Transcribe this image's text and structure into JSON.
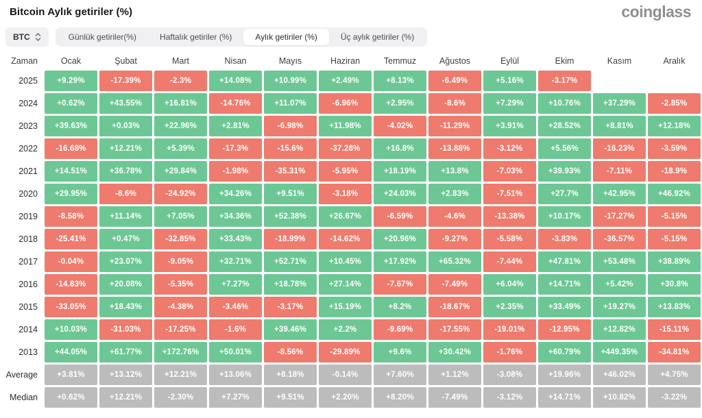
{
  "header": {
    "title": "Bitcoin Aylık getiriler (%)",
    "logo": "coinglass"
  },
  "controls": {
    "symbol": "BTC",
    "tabs": [
      {
        "label": "Günlük getiriler(%)",
        "active": false
      },
      {
        "label": "Haftalık getiriler (%)",
        "active": false
      },
      {
        "label": "Aylık getiriler (%)",
        "active": true
      },
      {
        "label": "Üç aylık getiriler (%)",
        "active": false
      }
    ]
  },
  "theme": {
    "positive": "#6cc794",
    "negative": "#ee7b6d",
    "neutral": "#bcbcbc",
    "tab_bar_bg": "#f0f0f2",
    "cell_text": "#ffffff"
  },
  "chart_data": {
    "type": "heatmap",
    "title": "Bitcoin Aylık getiriler (%)",
    "columns": [
      "Zaman",
      "Ocak",
      "Şubat",
      "Mart",
      "Nisan",
      "Mayıs",
      "Haziran",
      "Temmuz",
      "Ağustos",
      "Eylül",
      "Ekim",
      "Kasım",
      "Aralık"
    ],
    "rows": [
      {
        "label": "2025",
        "type": "year",
        "values": [
          "+9.29%",
          "-17.39%",
          "-2.3%",
          "+14.08%",
          "+10.99%",
          "+2.49%",
          "+8.13%",
          "-6.49%",
          "+5.16%",
          "-3.17%",
          null,
          null
        ]
      },
      {
        "label": "2024",
        "type": "year",
        "values": [
          "+0.62%",
          "+43.55%",
          "+16.81%",
          "-14.76%",
          "+11.07%",
          "-6.96%",
          "+2.95%",
          "-8.6%",
          "+7.29%",
          "+10.76%",
          "+37.29%",
          "-2.85%"
        ]
      },
      {
        "label": "2023",
        "type": "year",
        "values": [
          "+39.63%",
          "+0.03%",
          "+22.96%",
          "+2.81%",
          "-6.98%",
          "+11.98%",
          "-4.02%",
          "-11.29%",
          "+3.91%",
          "+28.52%",
          "+8.81%",
          "+12.18%"
        ]
      },
      {
        "label": "2022",
        "type": "year",
        "values": [
          "-16.68%",
          "+12.21%",
          "+5.39%",
          "-17.3%",
          "-15.6%",
          "-37.28%",
          "+16.8%",
          "-13.88%",
          "-3.12%",
          "+5.56%",
          "-16.23%",
          "-3.59%"
        ]
      },
      {
        "label": "2021",
        "type": "year",
        "values": [
          "+14.51%",
          "+36.78%",
          "+29.84%",
          "-1.98%",
          "-35.31%",
          "-5.95%",
          "+18.19%",
          "+13.8%",
          "-7.03%",
          "+39.93%",
          "-7.11%",
          "-18.9%"
        ]
      },
      {
        "label": "2020",
        "type": "year",
        "values": [
          "+29.95%",
          "-8.6%",
          "-24.92%",
          "+34.26%",
          "+9.51%",
          "-3.18%",
          "+24.03%",
          "+2.83%",
          "-7.51%",
          "+27.7%",
          "+42.95%",
          "+46.92%"
        ]
      },
      {
        "label": "2019",
        "type": "year",
        "values": [
          "-8.58%",
          "+11.14%",
          "+7.05%",
          "+34.36%",
          "+52.38%",
          "+26.67%",
          "-6.59%",
          "-4.6%",
          "-13.38%",
          "+10.17%",
          "-17.27%",
          "-5.15%"
        ]
      },
      {
        "label": "2018",
        "type": "year",
        "values": [
          "-25.41%",
          "+0.47%",
          "-32.85%",
          "+33.43%",
          "-18.99%",
          "-14.62%",
          "+20.96%",
          "-9.27%",
          "-5.58%",
          "-3.83%",
          "-36.57%",
          "-5.15%"
        ]
      },
      {
        "label": "2017",
        "type": "year",
        "values": [
          "-0.04%",
          "+23.07%",
          "-9.05%",
          "+32.71%",
          "+52.71%",
          "+10.45%",
          "+17.92%",
          "+65.32%",
          "-7.44%",
          "+47.81%",
          "+53.48%",
          "+38.89%"
        ]
      },
      {
        "label": "2016",
        "type": "year",
        "values": [
          "-14.83%",
          "+20.08%",
          "-5.35%",
          "+7.27%",
          "+18.78%",
          "+27.14%",
          "-7.67%",
          "-7.49%",
          "+6.04%",
          "+14.71%",
          "+5.42%",
          "+30.8%"
        ]
      },
      {
        "label": "2015",
        "type": "year",
        "values": [
          "-33.05%",
          "+18.43%",
          "-4.38%",
          "-3.46%",
          "-3.17%",
          "+15.19%",
          "+8.2%",
          "-18.67%",
          "+2.35%",
          "+33.49%",
          "+19.27%",
          "+13.83%"
        ]
      },
      {
        "label": "2014",
        "type": "year",
        "values": [
          "+10.03%",
          "-31.03%",
          "-17.25%",
          "-1.6%",
          "+39.46%",
          "+2.2%",
          "-9.69%",
          "-17.55%",
          "-19.01%",
          "-12.95%",
          "+12.82%",
          "-15.11%"
        ]
      },
      {
        "label": "2013",
        "type": "year",
        "values": [
          "+44.05%",
          "+61.77%",
          "+172.76%",
          "+50.01%",
          "-8.56%",
          "-29.89%",
          "+9.6%",
          "+30.42%",
          "-1.76%",
          "+60.79%",
          "+449.35%",
          "-34.81%"
        ]
      },
      {
        "label": "Average",
        "type": "summary",
        "values": [
          "+3.81%",
          "+13.12%",
          "+12.21%",
          "+13.06%",
          "+8.18%",
          "-0.14%",
          "+7.60%",
          "+1.12%",
          "-3.08%",
          "+19.96%",
          "+46.02%",
          "+4.75%"
        ]
      },
      {
        "label": "Median",
        "type": "summary",
        "values": [
          "+0.62%",
          "+12.21%",
          "-2.30%",
          "+7.27%",
          "+9.51%",
          "+2.20%",
          "+8.20%",
          "-7.49%",
          "-3.12%",
          "+14.71%",
          "+10.82%",
          "-3.22%"
        ]
      }
    ]
  }
}
